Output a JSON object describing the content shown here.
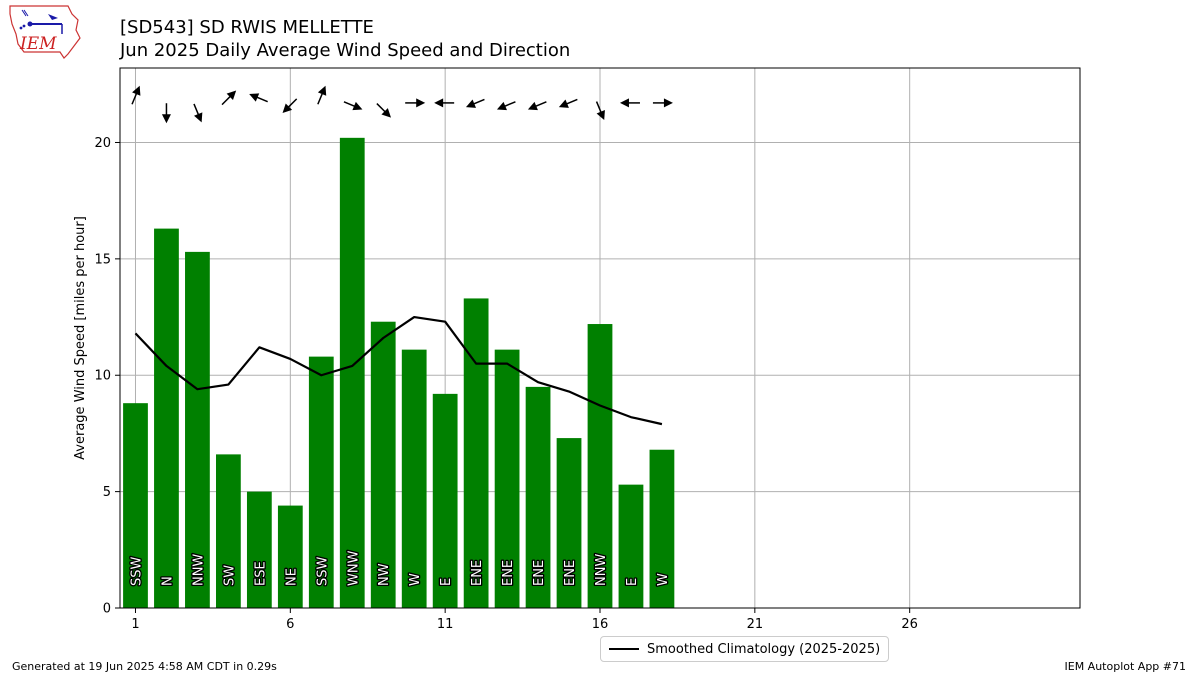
{
  "header": {
    "logo_text": "IEM",
    "title_line1": "[SD543] SD RWIS MELLETTE",
    "title_line2": "Jun 2025 Daily Average Wind Speed and Direction"
  },
  "footer": {
    "generated": "Generated at 19 Jun 2025 4:58 AM CDT in 0.29s",
    "app": "IEM Autoplot App #71"
  },
  "legend": {
    "label": "Smoothed Climatology (2025-2025)"
  },
  "colors": {
    "bar": "#008000",
    "climo_line": "#000000",
    "grid": "#b0b0b0"
  },
  "chart_data": {
    "type": "bar",
    "title": "Jun 2025 Daily Average Wind Speed and Direction",
    "xlabel": "",
    "ylabel": "Average Wind Speed [miles per hour]",
    "xlim": [
      0.5,
      31.5
    ],
    "ylim": [
      0,
      23.2
    ],
    "xticks": [
      1,
      6,
      11,
      16,
      21,
      26
    ],
    "yticks": [
      0,
      5,
      10,
      15,
      20
    ],
    "grid": true,
    "legend_position": "bottom-center",
    "x": [
      1,
      2,
      3,
      4,
      5,
      6,
      7,
      8,
      9,
      10,
      11,
      12,
      13,
      14,
      15,
      16,
      17,
      18
    ],
    "series": [
      {
        "name": "",
        "type": "bar",
        "values": [
          8.8,
          16.3,
          15.3,
          6.6,
          5.0,
          4.4,
          10.8,
          20.2,
          12.3,
          11.1,
          9.2,
          13.3,
          11.1,
          9.5,
          7.3,
          12.2,
          5.3,
          6.8
        ],
        "labels": [
          "SSW",
          "N",
          "NNW",
          "SW",
          "ESE",
          "NE",
          "SSW",
          "WNW",
          "NW",
          "W",
          "E",
          "ENE",
          "ENE",
          "ENE",
          "ENE",
          "NNW",
          "E",
          "W"
        ]
      },
      {
        "name": "Smoothed Climatology (2025-2025)",
        "type": "line",
        "values": [
          11.8,
          10.4,
          9.4,
          9.6,
          11.2,
          10.7,
          10.0,
          10.4,
          11.6,
          12.5,
          12.3,
          10.5,
          10.5,
          9.7,
          9.3,
          8.7,
          8.2,
          7.9
        ]
      }
    ],
    "wind_direction_deg": [
      202.5,
      0,
      337.5,
      225,
      112.5,
      45,
      202.5,
      292.5,
      315,
      270,
      90,
      67.5,
      67.5,
      67.5,
      67.5,
      337.5,
      90,
      270
    ]
  }
}
